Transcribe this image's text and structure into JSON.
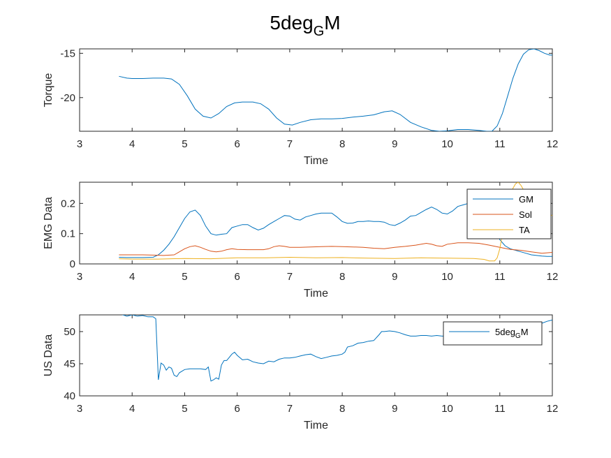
{
  "figure_title": {
    "base": "5deg",
    "sub": "G",
    "tail": "M"
  },
  "colors": {
    "blue": "#0072BD",
    "orange": "#D95319",
    "yellow": "#EDB120",
    "axis": "#262626"
  },
  "chart_data": [
    {
      "type": "line",
      "title": "5deg_GM",
      "xlabel": "Time",
      "ylabel": "Torque",
      "xlim": [
        3,
        12
      ],
      "ylim": [
        -23.8,
        -14.5
      ],
      "xticks": [
        "3",
        "4",
        "5",
        "6",
        "7",
        "8",
        "9",
        "10",
        "11",
        "12"
      ],
      "yticks": [
        -15,
        -20
      ],
      "ytick_labels": [
        "-15",
        "-20"
      ],
      "series": [
        {
          "name": "Torque",
          "color": "#0072BD",
          "x": [
            3.75,
            3.9,
            4.0,
            4.2,
            4.4,
            4.6,
            4.75,
            4.9,
            5.05,
            5.2,
            5.35,
            5.5,
            5.65,
            5.8,
            5.95,
            6.1,
            6.3,
            6.45,
            6.6,
            6.75,
            6.9,
            7.05,
            7.2,
            7.4,
            7.6,
            7.8,
            8.0,
            8.2,
            8.4,
            8.6,
            8.8,
            8.95,
            9.1,
            9.3,
            9.5,
            9.7,
            9.85,
            10.0,
            10.2,
            10.4,
            10.6,
            10.75,
            10.85,
            10.95,
            11.05,
            11.15,
            11.25,
            11.35,
            11.45,
            11.55,
            11.65,
            11.75,
            11.85,
            11.95,
            12.0
          ],
          "y": [
            -17.6,
            -17.8,
            -17.85,
            -17.85,
            -17.8,
            -17.8,
            -17.9,
            -18.5,
            -19.8,
            -21.3,
            -22.1,
            -22.3,
            -21.8,
            -21.0,
            -20.6,
            -20.5,
            -20.5,
            -20.7,
            -21.3,
            -22.3,
            -23.0,
            -23.1,
            -22.8,
            -22.5,
            -22.4,
            -22.4,
            -22.35,
            -22.2,
            -22.1,
            -21.95,
            -21.6,
            -21.5,
            -21.9,
            -22.8,
            -23.3,
            -23.7,
            -23.8,
            -23.75,
            -23.6,
            -23.6,
            -23.7,
            -23.8,
            -23.8,
            -23.2,
            -21.8,
            -19.8,
            -17.8,
            -16.2,
            -15.1,
            -14.6,
            -14.5,
            -14.7,
            -15.0,
            -15.2,
            -15.2
          ]
        }
      ]
    },
    {
      "type": "line",
      "xlabel": "Time",
      "ylabel": "EMG Data",
      "xlim": [
        3,
        12
      ],
      "ylim": [
        0,
        0.27
      ],
      "xticks": [
        "3",
        "4",
        "5",
        "6",
        "7",
        "8",
        "9",
        "10",
        "11",
        "12"
      ],
      "yticks": [
        0,
        0.1,
        0.2
      ],
      "ytick_labels": [
        "0",
        "0.1",
        "0.2"
      ],
      "legend": {
        "placement": "top-right",
        "entries": [
          "GM",
          "Sol",
          "TA"
        ]
      },
      "series": [
        {
          "name": "GM",
          "color": "#0072BD",
          "x": [
            3.75,
            3.9,
            4.0,
            4.2,
            4.4,
            4.5,
            4.6,
            4.7,
            4.8,
            4.9,
            5.0,
            5.1,
            5.2,
            5.3,
            5.4,
            5.5,
            5.6,
            5.7,
            5.8,
            5.9,
            6.0,
            6.1,
            6.2,
            6.3,
            6.4,
            6.5,
            6.6,
            6.7,
            6.8,
            6.9,
            7.0,
            7.1,
            7.2,
            7.3,
            7.4,
            7.5,
            7.6,
            7.7,
            7.8,
            7.9,
            8.0,
            8.1,
            8.2,
            8.3,
            8.4,
            8.5,
            8.6,
            8.7,
            8.8,
            8.9,
            9.0,
            9.1,
            9.2,
            9.3,
            9.4,
            9.5,
            9.6,
            9.7,
            9.8,
            9.9,
            10.0,
            10.1,
            10.2,
            10.3,
            10.4,
            10.5,
            10.6,
            10.7,
            10.8,
            10.9,
            11.0,
            11.1,
            11.2,
            11.3,
            11.4,
            11.5,
            11.6,
            11.7,
            11.8,
            11.9,
            12.0
          ],
          "y": [
            0.022,
            0.021,
            0.021,
            0.021,
            0.022,
            0.03,
            0.045,
            0.065,
            0.09,
            0.12,
            0.15,
            0.172,
            0.178,
            0.16,
            0.125,
            0.1,
            0.095,
            0.098,
            0.1,
            0.12,
            0.125,
            0.13,
            0.13,
            0.12,
            0.112,
            0.118,
            0.13,
            0.14,
            0.15,
            0.16,
            0.158,
            0.148,
            0.145,
            0.155,
            0.16,
            0.165,
            0.168,
            0.168,
            0.168,
            0.155,
            0.14,
            0.134,
            0.135,
            0.14,
            0.14,
            0.142,
            0.14,
            0.14,
            0.138,
            0.13,
            0.127,
            0.135,
            0.145,
            0.158,
            0.16,
            0.17,
            0.18,
            0.188,
            0.18,
            0.168,
            0.165,
            0.175,
            0.19,
            0.195,
            0.2,
            0.205,
            0.21,
            0.19,
            0.16,
            0.12,
            0.08,
            0.06,
            0.05,
            0.045,
            0.04,
            0.035,
            0.03,
            0.028,
            0.026,
            0.025,
            0.025
          ]
        },
        {
          "name": "Sol",
          "color": "#D95319",
          "x": [
            3.75,
            3.9,
            4.0,
            4.2,
            4.4,
            4.6,
            4.8,
            4.9,
            5.0,
            5.1,
            5.2,
            5.3,
            5.4,
            5.5,
            5.6,
            5.7,
            5.8,
            5.9,
            6.0,
            6.2,
            6.4,
            6.5,
            6.6,
            6.7,
            6.8,
            6.9,
            7.0,
            7.2,
            7.4,
            7.6,
            7.8,
            8.0,
            8.2,
            8.4,
            8.6,
            8.8,
            9.0,
            9.2,
            9.4,
            9.6,
            9.7,
            9.8,
            9.9,
            10.0,
            10.2,
            10.4,
            10.6,
            10.8,
            11.0,
            11.2,
            11.4,
            11.6,
            11.8,
            12.0
          ],
          "y": [
            0.03,
            0.03,
            0.03,
            0.03,
            0.029,
            0.028,
            0.03,
            0.04,
            0.05,
            0.057,
            0.06,
            0.055,
            0.048,
            0.042,
            0.04,
            0.042,
            0.047,
            0.05,
            0.048,
            0.047,
            0.047,
            0.047,
            0.05,
            0.057,
            0.06,
            0.058,
            0.055,
            0.055,
            0.056,
            0.057,
            0.058,
            0.057,
            0.056,
            0.055,
            0.052,
            0.05,
            0.055,
            0.058,
            0.062,
            0.068,
            0.065,
            0.06,
            0.058,
            0.065,
            0.07,
            0.07,
            0.068,
            0.062,
            0.055,
            0.048,
            0.045,
            0.04,
            0.035,
            0.038
          ]
        },
        {
          "name": "TA",
          "color": "#EDB120",
          "x": [
            3.75,
            4.0,
            4.5,
            5.0,
            5.5,
            6.0,
            6.5,
            7.0,
            7.5,
            8.0,
            8.5,
            9.0,
            9.5,
            10.0,
            10.5,
            10.7,
            10.8,
            10.9,
            10.95,
            11.0,
            11.05,
            11.1,
            11.15,
            11.2,
            11.25,
            11.3,
            11.35,
            11.4,
            11.5,
            11.6,
            11.7,
            11.8,
            11.9,
            12.0
          ],
          "y": [
            0.017,
            0.016,
            0.016,
            0.018,
            0.017,
            0.02,
            0.02,
            0.022,
            0.02,
            0.021,
            0.019,
            0.018,
            0.02,
            0.019,
            0.018,
            0.015,
            0.01,
            0.01,
            0.02,
            0.05,
            0.1,
            0.16,
            0.2,
            0.23,
            0.25,
            0.265,
            0.27,
            0.26,
            0.23,
            0.2,
            0.18,
            0.17,
            0.165,
            0.16
          ]
        }
      ]
    },
    {
      "type": "line",
      "xlabel": "Time",
      "ylabel": "US Data",
      "xlim": [
        3,
        12
      ],
      "ylim": [
        40,
        52.6
      ],
      "xticks": [
        "3",
        "4",
        "5",
        "6",
        "7",
        "8",
        "9",
        "10",
        "11",
        "12"
      ],
      "yticks": [
        40,
        45,
        50
      ],
      "ytick_labels": [
        "40",
        "45",
        "50"
      ],
      "legend": {
        "placement": "top-right",
        "entries": [
          {
            "base": "5deg",
            "sub": "G",
            "tail": "M"
          }
        ]
      },
      "series": [
        {
          "name": "5deg_GM",
          "color": "#0072BD",
          "x": [
            3.75,
            3.9,
            4.0,
            4.1,
            4.2,
            4.3,
            4.4,
            4.45,
            4.5,
            4.55,
            4.6,
            4.65,
            4.7,
            4.75,
            4.8,
            4.85,
            4.9,
            5.0,
            5.1,
            5.2,
            5.3,
            5.4,
            5.45,
            5.5,
            5.55,
            5.6,
            5.65,
            5.7,
            5.75,
            5.8,
            5.85,
            5.9,
            5.95,
            6.0,
            6.1,
            6.2,
            6.3,
            6.4,
            6.5,
            6.6,
            6.7,
            6.8,
            6.9,
            7.0,
            7.1,
            7.2,
            7.3,
            7.4,
            7.5,
            7.6,
            7.7,
            7.8,
            7.9,
            8.0,
            8.05,
            8.1,
            8.2,
            8.3,
            8.4,
            8.5,
            8.6,
            8.7,
            8.75,
            8.8,
            8.9,
            9.0,
            9.1,
            9.2,
            9.3,
            9.4,
            9.5,
            9.6,
            9.7,
            9.8,
            9.9,
            10.0,
            10.2,
            10.4,
            10.6,
            10.8,
            11.0,
            11.2,
            11.4,
            11.6,
            11.8,
            11.9,
            12.0
          ],
          "y": [
            52.8,
            52.4,
            52.6,
            52.4,
            52.5,
            52.3,
            52.3,
            52.0,
            42.5,
            45.1,
            44.8,
            44.0,
            44.5,
            44.3,
            43.2,
            43.0,
            43.6,
            44.1,
            44.2,
            44.2,
            44.2,
            44.1,
            44.5,
            42.3,
            42.5,
            42.8,
            42.6,
            44.8,
            45.5,
            45.5,
            46.0,
            46.5,
            46.8,
            46.3,
            45.6,
            45.7,
            45.3,
            45.1,
            45.0,
            45.4,
            45.3,
            45.7,
            45.9,
            45.9,
            46.0,
            46.2,
            46.4,
            46.5,
            46.1,
            45.8,
            46.0,
            46.2,
            46.3,
            46.5,
            46.8,
            47.6,
            47.8,
            48.2,
            48.3,
            48.5,
            48.6,
            49.5,
            50.0,
            50.0,
            50.1,
            50.0,
            49.8,
            49.5,
            49.3,
            49.3,
            49.4,
            49.4,
            49.3,
            49.4,
            49.3,
            49.3,
            49.4,
            49.4,
            49.5,
            49.7,
            50.0,
            50.2,
            50.5,
            51.0,
            51.3,
            51.6,
            51.8
          ]
        }
      ]
    }
  ]
}
